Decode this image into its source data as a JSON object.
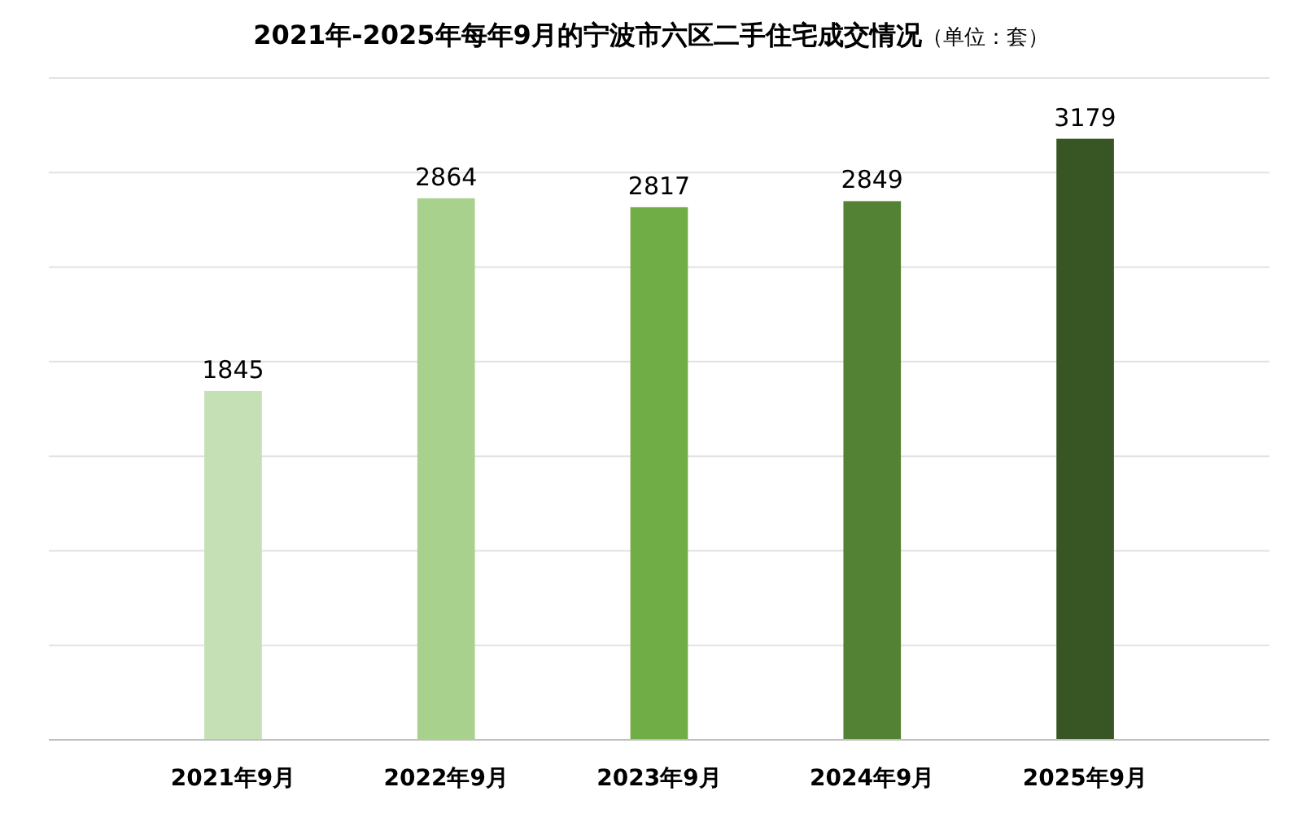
{
  "chart_data": {
    "type": "bar",
    "title": "2021年-2025年每年9月的宁波市六区二手住宅成交情况",
    "subtitle": "（单位：套）",
    "categories": [
      "2021年9月",
      "2022年9月",
      "2023年9月",
      "2024年9月",
      "2025年9月"
    ],
    "values": [
      1845,
      2864,
      2817,
      2849,
      3179
    ],
    "colors": [
      "#c5e0b4",
      "#a9d18e",
      "#70ad47",
      "#548235",
      "#375623"
    ],
    "ylim": [
      0,
      3500
    ],
    "yticks": [
      {
        "value": 0,
        "label": null
      },
      {
        "value": 500,
        "label": null
      },
      {
        "value": 1000,
        "label": null
      },
      {
        "value": 1500,
        "label": null
      },
      {
        "value": 2000,
        "label": null
      },
      {
        "value": 2500,
        "label": null
      },
      {
        "value": 3000,
        "label": null
      },
      {
        "value": 3500,
        "label": null
      }
    ],
    "grid": "y",
    "tick_labels": "x",
    "data_labels": true
  }
}
